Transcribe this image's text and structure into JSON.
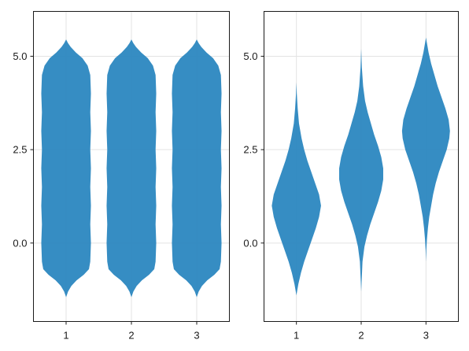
{
  "chart_data": [
    {
      "type": "violin",
      "title": "",
      "xlabel": "",
      "ylabel": "",
      "x_categories": [
        "1",
        "2",
        "3"
      ],
      "y_ticks": [
        0.0,
        2.5,
        5.0
      ],
      "y_tick_labels": [
        "0.0",
        "2.5",
        "5.0"
      ],
      "ylim": [
        -2.1,
        6.2
      ],
      "grid": true,
      "color": "#2b87c0",
      "violins": [
        {
          "category": "1",
          "min": -1.45,
          "max": 5.45,
          "max_half_width": 0.38,
          "profile": [
            [
              -1.45,
              0.0
            ],
            [
              -1.3,
              0.03
            ],
            [
              -1.15,
              0.08
            ],
            [
              -1.0,
              0.16
            ],
            [
              -0.85,
              0.27
            ],
            [
              -0.7,
              0.35
            ],
            [
              -0.5,
              0.37
            ],
            [
              0.0,
              0.38
            ],
            [
              0.5,
              0.37
            ],
            [
              1.0,
              0.38
            ],
            [
              1.5,
              0.37
            ],
            [
              2.0,
              0.38
            ],
            [
              2.5,
              0.37
            ],
            [
              3.0,
              0.38
            ],
            [
              3.5,
              0.37
            ],
            [
              4.0,
              0.38
            ],
            [
              4.5,
              0.37
            ],
            [
              4.75,
              0.33
            ],
            [
              4.95,
              0.25
            ],
            [
              5.1,
              0.15
            ],
            [
              5.25,
              0.07
            ],
            [
              5.35,
              0.03
            ],
            [
              5.45,
              0.0
            ]
          ]
        },
        {
          "category": "2",
          "min": -1.45,
          "max": 5.45,
          "max_half_width": 0.38,
          "profile": [
            [
              -1.45,
              0.0
            ],
            [
              -1.3,
              0.03
            ],
            [
              -1.15,
              0.08
            ],
            [
              -1.0,
              0.16
            ],
            [
              -0.85,
              0.27
            ],
            [
              -0.7,
              0.35
            ],
            [
              -0.5,
              0.37
            ],
            [
              0.0,
              0.38
            ],
            [
              0.5,
              0.37
            ],
            [
              1.0,
              0.38
            ],
            [
              1.5,
              0.37
            ],
            [
              2.0,
              0.38
            ],
            [
              2.5,
              0.37
            ],
            [
              3.0,
              0.38
            ],
            [
              3.5,
              0.37
            ],
            [
              4.0,
              0.38
            ],
            [
              4.5,
              0.37
            ],
            [
              4.75,
              0.33
            ],
            [
              4.95,
              0.25
            ],
            [
              5.1,
              0.15
            ],
            [
              5.25,
              0.07
            ],
            [
              5.35,
              0.03
            ],
            [
              5.45,
              0.0
            ]
          ]
        },
        {
          "category": "3",
          "min": -1.45,
          "max": 5.45,
          "max_half_width": 0.38,
          "profile": [
            [
              -1.45,
              0.0
            ],
            [
              -1.3,
              0.03
            ],
            [
              -1.15,
              0.08
            ],
            [
              -1.0,
              0.16
            ],
            [
              -0.85,
              0.27
            ],
            [
              -0.7,
              0.35
            ],
            [
              -0.5,
              0.37
            ],
            [
              0.0,
              0.38
            ],
            [
              0.5,
              0.37
            ],
            [
              1.0,
              0.38
            ],
            [
              1.5,
              0.37
            ],
            [
              2.0,
              0.38
            ],
            [
              2.5,
              0.37
            ],
            [
              3.0,
              0.38
            ],
            [
              3.5,
              0.37
            ],
            [
              4.0,
              0.38
            ],
            [
              4.5,
              0.37
            ],
            [
              4.75,
              0.33
            ],
            [
              4.95,
              0.25
            ],
            [
              5.1,
              0.15
            ],
            [
              5.25,
              0.07
            ],
            [
              5.35,
              0.03
            ],
            [
              5.45,
              0.0
            ]
          ]
        }
      ]
    },
    {
      "type": "violin",
      "title": "",
      "xlabel": "",
      "ylabel": "",
      "x_categories": [
        "1",
        "2",
        "3"
      ],
      "y_ticks": [
        0.0,
        2.5,
        5.0
      ],
      "y_tick_labels": [
        "0.0",
        "2.5",
        "5.0"
      ],
      "ylim": [
        -2.1,
        6.2
      ],
      "grid": true,
      "color": "#2b87c0",
      "violins": [
        {
          "category": "1",
          "min": -1.4,
          "max": 4.3,
          "max_half_width": 0.38,
          "profile": [
            [
              -1.4,
              0.0
            ],
            [
              -1.1,
              0.03
            ],
            [
              -0.8,
              0.07
            ],
            [
              -0.5,
              0.12
            ],
            [
              -0.2,
              0.18
            ],
            [
              0.1,
              0.24
            ],
            [
              0.4,
              0.3
            ],
            [
              0.7,
              0.35
            ],
            [
              1.0,
              0.38
            ],
            [
              1.3,
              0.35
            ],
            [
              1.6,
              0.29
            ],
            [
              1.9,
              0.23
            ],
            [
              2.2,
              0.17
            ],
            [
              2.5,
              0.12
            ],
            [
              2.8,
              0.08
            ],
            [
              3.2,
              0.04
            ],
            [
              3.6,
              0.02
            ],
            [
              4.0,
              0.006
            ],
            [
              4.3,
              0.0
            ]
          ]
        },
        {
          "category": "2",
          "min": -1.3,
          "max": 5.2,
          "max_half_width": 0.34,
          "profile": [
            [
              -1.3,
              0.0
            ],
            [
              -0.9,
              0.01
            ],
            [
              -0.5,
              0.02
            ],
            [
              -0.1,
              0.05
            ],
            [
              0.2,
              0.09
            ],
            [
              0.5,
              0.14
            ],
            [
              0.8,
              0.2
            ],
            [
              1.1,
              0.26
            ],
            [
              1.4,
              0.31
            ],
            [
              1.7,
              0.34
            ],
            [
              2.0,
              0.34
            ],
            [
              2.3,
              0.31
            ],
            [
              2.6,
              0.26
            ],
            [
              2.9,
              0.2
            ],
            [
              3.2,
              0.15
            ],
            [
              3.5,
              0.1
            ],
            [
              3.8,
              0.06
            ],
            [
              4.2,
              0.03
            ],
            [
              4.7,
              0.01
            ],
            [
              5.2,
              0.0
            ]
          ]
        },
        {
          "category": "3",
          "min": -0.5,
          "max": 5.5,
          "max_half_width": 0.37,
          "profile": [
            [
              -0.5,
              0.0
            ],
            [
              -0.2,
              0.005
            ],
            [
              0.1,
              0.015
            ],
            [
              0.4,
              0.03
            ],
            [
              0.7,
              0.05
            ],
            [
              1.0,
              0.08
            ],
            [
              1.3,
              0.11
            ],
            [
              1.6,
              0.15
            ],
            [
              1.9,
              0.2
            ],
            [
              2.2,
              0.26
            ],
            [
              2.5,
              0.32
            ],
            [
              2.8,
              0.36
            ],
            [
              3.0,
              0.37
            ],
            [
              3.3,
              0.35
            ],
            [
              3.6,
              0.3
            ],
            [
              3.9,
              0.24
            ],
            [
              4.2,
              0.18
            ],
            [
              4.5,
              0.13
            ],
            [
              4.8,
              0.08
            ],
            [
              5.1,
              0.04
            ],
            [
              5.3,
              0.02
            ],
            [
              5.5,
              0.0
            ]
          ]
        }
      ]
    }
  ]
}
